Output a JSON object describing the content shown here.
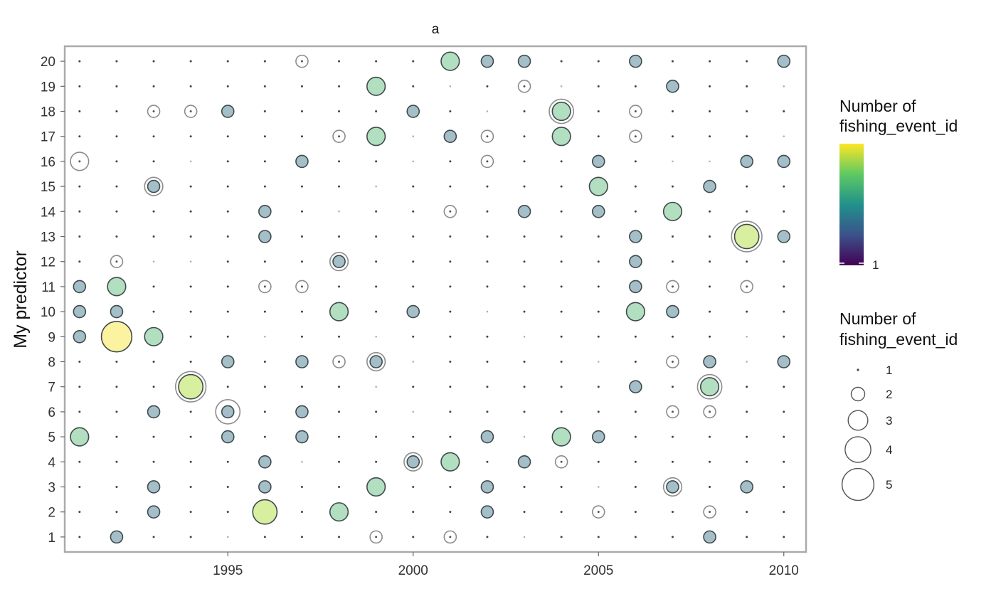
{
  "chart_data": {
    "type": "scatter",
    "title": "a",
    "xlabel": "",
    "ylabel": "My predictor",
    "xlim": [
      1990.6,
      2010.6
    ],
    "ylim": [
      0.4,
      20.6
    ],
    "x_ticks": [
      1995,
      2000,
      2005,
      2010
    ],
    "y_ticks": [
      1,
      2,
      3,
      4,
      5,
      6,
      7,
      8,
      9,
      10,
      11,
      12,
      13,
      14,
      15,
      16,
      17,
      18,
      19,
      20
    ],
    "grid": false,
    "color_legend": {
      "title_line1": "Number of",
      "title_line2": "fishing_event_id",
      "min_label": "1",
      "colors": [
        "#440154",
        "#3b528b",
        "#21918c",
        "#5ec962",
        "#fde725"
      ]
    },
    "size_legend": {
      "title_line1": "Number of",
      "title_line2": "fishing_event_id",
      "values": [
        1,
        2,
        3,
        4,
        5
      ],
      "labels": [
        "1",
        "2",
        "3",
        "4",
        "5"
      ]
    },
    "filled_points": [
      {
        "x": 1991,
        "y": 11,
        "n": 2
      },
      {
        "x": 1991,
        "y": 10,
        "n": 2
      },
      {
        "x": 1991,
        "y": 9,
        "n": 2
      },
      {
        "x": 1991,
        "y": 5,
        "n": 3
      },
      {
        "x": 1992,
        "y": 11,
        "n": 3
      },
      {
        "x": 1992,
        "y": 10,
        "n": 2
      },
      {
        "x": 1992,
        "y": 9,
        "n": 5
      },
      {
        "x": 1992,
        "y": 1,
        "n": 2
      },
      {
        "x": 1993,
        "y": 15,
        "n": 2
      },
      {
        "x": 1993,
        "y": 9,
        "n": 3
      },
      {
        "x": 1993,
        "y": 6,
        "n": 2
      },
      {
        "x": 1993,
        "y": 3,
        "n": 2
      },
      {
        "x": 1993,
        "y": 2,
        "n": 2
      },
      {
        "x": 1994,
        "y": 7,
        "n": 4
      },
      {
        "x": 1995,
        "y": 18,
        "n": 2
      },
      {
        "x": 1995,
        "y": 8,
        "n": 2
      },
      {
        "x": 1995,
        "y": 6,
        "n": 2
      },
      {
        "x": 1995,
        "y": 5,
        "n": 2
      },
      {
        "x": 1996,
        "y": 14,
        "n": 2
      },
      {
        "x": 1996,
        "y": 13,
        "n": 2
      },
      {
        "x": 1996,
        "y": 4,
        "n": 2
      },
      {
        "x": 1996,
        "y": 3,
        "n": 2
      },
      {
        "x": 1996,
        "y": 2,
        "n": 4
      },
      {
        "x": 1997,
        "y": 16,
        "n": 2
      },
      {
        "x": 1997,
        "y": 8,
        "n": 2
      },
      {
        "x": 1997,
        "y": 6,
        "n": 2
      },
      {
        "x": 1997,
        "y": 5,
        "n": 2
      },
      {
        "x": 1998,
        "y": 12,
        "n": 2
      },
      {
        "x": 1998,
        "y": 10,
        "n": 3
      },
      {
        "x": 1998,
        "y": 2,
        "n": 3
      },
      {
        "x": 1999,
        "y": 19,
        "n": 3
      },
      {
        "x": 1999,
        "y": 17,
        "n": 3
      },
      {
        "x": 1999,
        "y": 8,
        "n": 2
      },
      {
        "x": 1999,
        "y": 3,
        "n": 3
      },
      {
        "x": 2000,
        "y": 18,
        "n": 2
      },
      {
        "x": 2000,
        "y": 10,
        "n": 2
      },
      {
        "x": 2000,
        "y": 4,
        "n": 2
      },
      {
        "x": 2001,
        "y": 20,
        "n": 3
      },
      {
        "x": 2001,
        "y": 17,
        "n": 2
      },
      {
        "x": 2001,
        "y": 4,
        "n": 3
      },
      {
        "x": 2002,
        "y": 20,
        "n": 2
      },
      {
        "x": 2002,
        "y": 5,
        "n": 2
      },
      {
        "x": 2002,
        "y": 3,
        "n": 2
      },
      {
        "x": 2002,
        "y": 2,
        "n": 2
      },
      {
        "x": 2003,
        "y": 20,
        "n": 2
      },
      {
        "x": 2003,
        "y": 14,
        "n": 2
      },
      {
        "x": 2003,
        "y": 4,
        "n": 2
      },
      {
        "x": 2004,
        "y": 18,
        "n": 3
      },
      {
        "x": 2004,
        "y": 17,
        "n": 3
      },
      {
        "x": 2004,
        "y": 5,
        "n": 3
      },
      {
        "x": 2005,
        "y": 16,
        "n": 2
      },
      {
        "x": 2005,
        "y": 15,
        "n": 3
      },
      {
        "x": 2005,
        "y": 14,
        "n": 2
      },
      {
        "x": 2005,
        "y": 5,
        "n": 2
      },
      {
        "x": 2006,
        "y": 20,
        "n": 2
      },
      {
        "x": 2006,
        "y": 13,
        "n": 2
      },
      {
        "x": 2006,
        "y": 12,
        "n": 2
      },
      {
        "x": 2006,
        "y": 11,
        "n": 2
      },
      {
        "x": 2006,
        "y": 10,
        "n": 3
      },
      {
        "x": 2006,
        "y": 7,
        "n": 2
      },
      {
        "x": 2007,
        "y": 19,
        "n": 2
      },
      {
        "x": 2007,
        "y": 14,
        "n": 3
      },
      {
        "x": 2007,
        "y": 10,
        "n": 2
      },
      {
        "x": 2007,
        "y": 3,
        "n": 2
      },
      {
        "x": 2008,
        "y": 15,
        "n": 2
      },
      {
        "x": 2008,
        "y": 8,
        "n": 2
      },
      {
        "x": 2008,
        "y": 7,
        "n": 3
      },
      {
        "x": 2008,
        "y": 1,
        "n": 2
      },
      {
        "x": 2009,
        "y": 16,
        "n": 2
      },
      {
        "x": 2009,
        "y": 13,
        "n": 4
      },
      {
        "x": 2009,
        "y": 3,
        "n": 2
      },
      {
        "x": 2010,
        "y": 20,
        "n": 2
      },
      {
        "x": 2010,
        "y": 16,
        "n": 2
      },
      {
        "x": 2010,
        "y": 13,
        "n": 2
      },
      {
        "x": 2010,
        "y": 8,
        "n": 2
      }
    ],
    "outline_rings": [
      {
        "x": 1991,
        "y": 16,
        "n": 3
      },
      {
        "x": 1992,
        "y": 12,
        "n": 2
      },
      {
        "x": 1993,
        "y": 18,
        "n": 2
      },
      {
        "x": 1993,
        "y": 15,
        "n": 3
      },
      {
        "x": 1994,
        "y": 18,
        "n": 2
      },
      {
        "x": 1994,
        "y": 7,
        "n": 5
      },
      {
        "x": 1995,
        "y": 6,
        "n": 4
      },
      {
        "x": 1996,
        "y": 11,
        "n": 2
      },
      {
        "x": 1997,
        "y": 20,
        "n": 2
      },
      {
        "x": 1997,
        "y": 11,
        "n": 2
      },
      {
        "x": 1998,
        "y": 17,
        "n": 2
      },
      {
        "x": 1998,
        "y": 12,
        "n": 3
      },
      {
        "x": 1998,
        "y": 8,
        "n": 2
      },
      {
        "x": 1999,
        "y": 8,
        "n": 3
      },
      {
        "x": 1999,
        "y": 1,
        "n": 2
      },
      {
        "x": 2000,
        "y": 4,
        "n": 3
      },
      {
        "x": 2001,
        "y": 14,
        "n": 2
      },
      {
        "x": 2001,
        "y": 1,
        "n": 2
      },
      {
        "x": 2002,
        "y": 17,
        "n": 2
      },
      {
        "x": 2002,
        "y": 16,
        "n": 2
      },
      {
        "x": 2003,
        "y": 19,
        "n": 2
      },
      {
        "x": 2004,
        "y": 18,
        "n": 4
      },
      {
        "x": 2004,
        "y": 4,
        "n": 2
      },
      {
        "x": 2005,
        "y": 2,
        "n": 2
      },
      {
        "x": 2006,
        "y": 18,
        "n": 2
      },
      {
        "x": 2006,
        "y": 17,
        "n": 2
      },
      {
        "x": 2007,
        "y": 11,
        "n": 2
      },
      {
        "x": 2007,
        "y": 8,
        "n": 2
      },
      {
        "x": 2007,
        "y": 6,
        "n": 2
      },
      {
        "x": 2007,
        "y": 3,
        "n": 3
      },
      {
        "x": 2008,
        "y": 7,
        "n": 4
      },
      {
        "x": 2008,
        "y": 6,
        "n": 2
      },
      {
        "x": 2008,
        "y": 2,
        "n": 2
      },
      {
        "x": 2009,
        "y": 13,
        "n": 5
      },
      {
        "x": 2009,
        "y": 11,
        "n": 2
      }
    ],
    "faint_dots": [
      {
        "x": 1994,
        "y": 16
      },
      {
        "x": 1993,
        "y": 12
      },
      {
        "x": 1994,
        "y": 12
      },
      {
        "x": 1996,
        "y": 9
      },
      {
        "x": 1995,
        "y": 1
      },
      {
        "x": 1997,
        "y": 4
      },
      {
        "x": 1998,
        "y": 14
      },
      {
        "x": 1999,
        "y": 15
      },
      {
        "x": 1999,
        "y": 9
      },
      {
        "x": 1999,
        "y": 7
      },
      {
        "x": 2000,
        "y": 17
      },
      {
        "x": 2000,
        "y": 16
      },
      {
        "x": 2000,
        "y": 8
      },
      {
        "x": 2000,
        "y": 6
      },
      {
        "x": 2001,
        "y": 19
      },
      {
        "x": 2002,
        "y": 18
      },
      {
        "x": 2002,
        "y": 10
      },
      {
        "x": 2003,
        "y": 9
      },
      {
        "x": 2003,
        "y": 5
      },
      {
        "x": 2003,
        "y": 1
      },
      {
        "x": 2004,
        "y": 19
      },
      {
        "x": 2005,
        "y": 8
      },
      {
        "x": 2005,
        "y": 3
      },
      {
        "x": 2007,
        "y": 16
      },
      {
        "x": 2008,
        "y": 16
      },
      {
        "x": 2009,
        "y": 9
      },
      {
        "x": 2009,
        "y": 8
      },
      {
        "x": 2010,
        "y": 19
      },
      {
        "x": 2010,
        "y": 17
      }
    ]
  }
}
